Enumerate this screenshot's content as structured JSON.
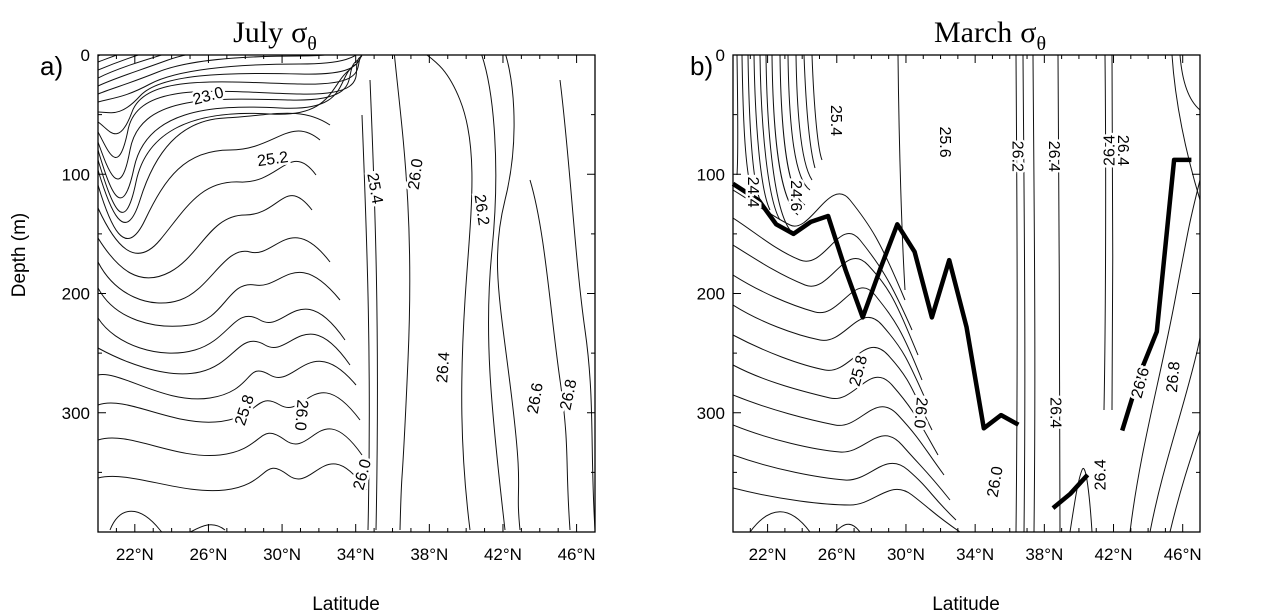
{
  "chart_data": [
    {
      "type": "contour",
      "panel_label": "a)",
      "title": "July",
      "title_symbol": "σ",
      "title_subscript": "θ",
      "xlabel": "Latitude",
      "ylabel": "Depth (m)",
      "xlim": [
        20,
        47
      ],
      "ylim": [
        400,
        0
      ],
      "xticks": [
        "22°N",
        "26°N",
        "30°N",
        "34°N",
        "38°N",
        "42°N",
        "46°N"
      ],
      "yticks": [
        "0",
        "100",
        "200",
        "300"
      ],
      "contour_labels": [
        {
          "text": "23.0",
          "lat": 26.0,
          "depth": 35,
          "angle": -15
        },
        {
          "text": "25.2",
          "lat": 29.5,
          "depth": 88,
          "angle": -8
        },
        {
          "text": "25.4",
          "lat": 35.0,
          "depth": 112,
          "angle": 80
        },
        {
          "text": "26.0",
          "lat": 37.3,
          "depth": 100,
          "angle": -82
        },
        {
          "text": "26.2",
          "lat": 40.8,
          "depth": 130,
          "angle": 82
        },
        {
          "text": "25.8",
          "lat": 28.0,
          "depth": 298,
          "angle": -72
        },
        {
          "text": "26.0",
          "lat": 31.0,
          "depth": 302,
          "angle": 95
        },
        {
          "text": "26.4",
          "lat": 38.8,
          "depth": 262,
          "angle": -86
        },
        {
          "text": "26.6",
          "lat": 43.8,
          "depth": 288,
          "angle": -80
        },
        {
          "text": "26.8",
          "lat": 45.6,
          "depth": 285,
          "angle": -78
        },
        {
          "text": "26.0",
          "lat": 34.4,
          "depth": 352,
          "angle": -75
        }
      ]
    },
    {
      "type": "contour",
      "panel_label": "b)",
      "title": "March",
      "title_symbol": "σ",
      "title_subscript": "θ",
      "xlabel": "Latitude",
      "ylabel": "",
      "xlim": [
        20,
        47
      ],
      "ylim": [
        400,
        0
      ],
      "xticks": [
        "22°N",
        "26°N",
        "30°N",
        "34°N",
        "38°N",
        "42°N",
        "46°N"
      ],
      "yticks": [
        "0",
        "100",
        "200",
        "300"
      ],
      "contour_labels": [
        {
          "text": "24.4",
          "lat": 21.1,
          "depth": 115,
          "angle": 90
        },
        {
          "text": "24.6",
          "lat": 23.6,
          "depth": 118,
          "angle": 90
        },
        {
          "text": "25.4",
          "lat": 25.9,
          "depth": 55,
          "angle": 90
        },
        {
          "text": "25.6",
          "lat": 32.2,
          "depth": 73,
          "angle": 90
        },
        {
          "text": "26.2",
          "lat": 36.4,
          "depth": 85,
          "angle": 90
        },
        {
          "text": "26.4",
          "lat": 38.5,
          "depth": 85,
          "angle": 90
        },
        {
          "text": "26.4",
          "lat": 41.8,
          "depth": 80,
          "angle": -90
        },
        {
          "text": "26.4",
          "lat": 42.5,
          "depth": 80,
          "angle": 90
        },
        {
          "text": "25.8",
          "lat": 27.3,
          "depth": 265,
          "angle": -75
        },
        {
          "text": "26.0",
          "lat": 30.8,
          "depth": 300,
          "angle": 95
        },
        {
          "text": "26.0",
          "lat": 35.2,
          "depth": 358,
          "angle": -80
        },
        {
          "text": "26.4",
          "lat": 38.6,
          "depth": 300,
          "angle": 90
        },
        {
          "text": "26.4",
          "lat": 41.3,
          "depth": 352,
          "angle": -90
        },
        {
          "text": "26.6",
          "lat": 43.6,
          "depth": 275,
          "angle": -75
        },
        {
          "text": "26.8",
          "lat": 45.5,
          "depth": 270,
          "angle": -85
        }
      ],
      "mixed_layer_depth": [
        {
          "lat": [
            20,
            21.5,
            22.5,
            23.5,
            24.5,
            25.5,
            26.5,
            27.5,
            28.5,
            29.5,
            30.5,
            31.5,
            32.5,
            33.5,
            34.5,
            35.5,
            36.5
          ],
          "depth": [
            108,
            122,
            142,
            150,
            140,
            135,
            180,
            220,
            180,
            142,
            165,
            220,
            172,
            228,
            313,
            302,
            310
          ]
        },
        {
          "lat": [
            38.5,
            39.5,
            40.5
          ],
          "depth": [
            380,
            368,
            352
          ]
        },
        {
          "lat": [
            42.5,
            43.5,
            44.5,
            45.5,
            46.5
          ],
          "depth": [
            315,
            268,
            232,
            88,
            88
          ]
        }
      ]
    }
  ]
}
